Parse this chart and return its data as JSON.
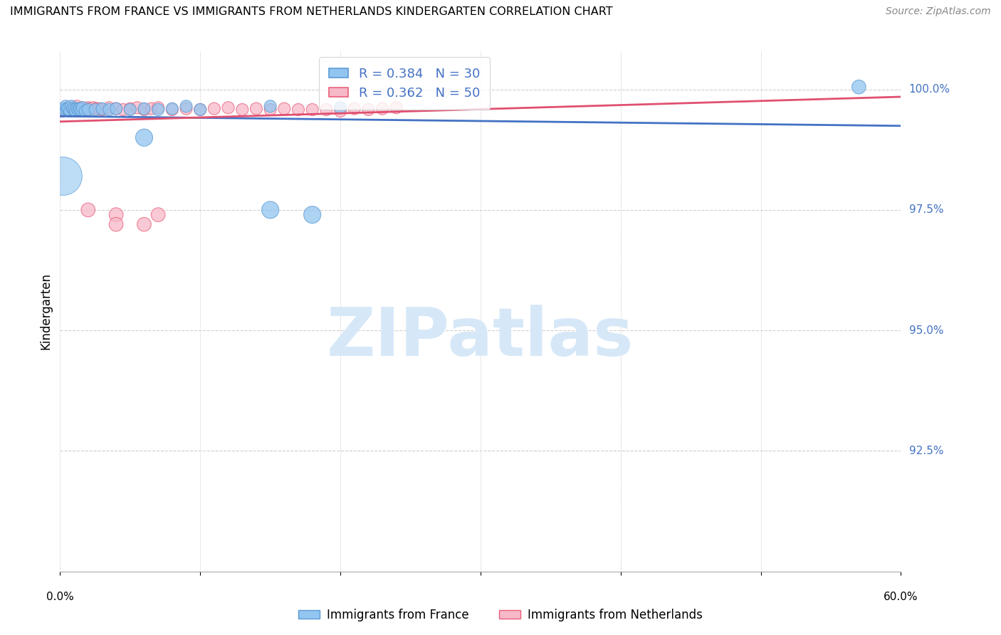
{
  "title": "IMMIGRANTS FROM FRANCE VS IMMIGRANTS FROM NETHERLANDS KINDERGARTEN CORRELATION CHART",
  "source": "Source: ZipAtlas.com",
  "ylabel": "Kindergarten",
  "x_range": [
    0.0,
    0.6
  ],
  "y_range": [
    0.9,
    1.008
  ],
  "y_ticks": [
    0.925,
    0.95,
    0.975,
    1.0
  ],
  "y_tick_labels": [
    "92.5%",
    "95.0%",
    "97.5%",
    "100.0%"
  ],
  "x_ticks": [
    0.0,
    0.1,
    0.2,
    0.3,
    0.4,
    0.5,
    0.6
  ],
  "x_tick_labels_show": [
    "0.0%",
    "60.0%"
  ],
  "legend_france": "R = 0.384   N = 30",
  "legend_netherlands": "R = 0.362   N = 50",
  "france_color": "#92c5f0",
  "netherlands_color": "#f7b8c8",
  "france_edge_color": "#5b9bd5",
  "netherlands_edge_color": "#e8607a",
  "france_line_color": "#4472c4",
  "netherlands_line_color": "#e05070",
  "watermark_text": "ZIPatlas",
  "watermark_color": "#d6e8f8",
  "france_points": [
    [
      0.002,
      0.9955
    ],
    [
      0.003,
      0.996
    ],
    [
      0.004,
      0.9965
    ],
    [
      0.005,
      0.996
    ],
    [
      0.006,
      0.996
    ],
    [
      0.007,
      0.9955
    ],
    [
      0.008,
      0.9965
    ],
    [
      0.009,
      0.996
    ],
    [
      0.01,
      0.9958
    ],
    [
      0.011,
      0.9955
    ],
    [
      0.012,
      0.996
    ],
    [
      0.013,
      0.9958
    ],
    [
      0.014,
      0.996
    ],
    [
      0.015,
      0.9958
    ],
    [
      0.016,
      0.9962
    ],
    [
      0.018,
      0.9955
    ],
    [
      0.02,
      0.9958
    ],
    [
      0.025,
      0.9958
    ],
    [
      0.03,
      0.996
    ],
    [
      0.035,
      0.9958
    ],
    [
      0.04,
      0.996
    ],
    [
      0.05,
      0.9958
    ],
    [
      0.06,
      0.996
    ],
    [
      0.07,
      0.9958
    ],
    [
      0.08,
      0.996
    ],
    [
      0.09,
      0.9965
    ],
    [
      0.1,
      0.9958
    ],
    [
      0.15,
      0.9965
    ],
    [
      0.2,
      0.9962
    ],
    [
      0.57,
      1.0005
    ]
  ],
  "france_sizes": [
    60,
    60,
    60,
    60,
    60,
    60,
    60,
    60,
    60,
    60,
    60,
    60,
    60,
    60,
    60,
    60,
    60,
    60,
    60,
    60,
    60,
    60,
    60,
    60,
    60,
    60,
    60,
    60,
    60,
    80
  ],
  "netherlands_points": [
    [
      0.001,
      0.9955
    ],
    [
      0.002,
      0.9958
    ],
    [
      0.003,
      0.996
    ],
    [
      0.004,
      0.996
    ],
    [
      0.005,
      0.9958
    ],
    [
      0.006,
      0.9962
    ],
    [
      0.007,
      0.996
    ],
    [
      0.008,
      0.9958
    ],
    [
      0.009,
      0.9962
    ],
    [
      0.01,
      0.9958
    ],
    [
      0.011,
      0.996
    ],
    [
      0.012,
      0.9965
    ],
    [
      0.013,
      0.9955
    ],
    [
      0.014,
      0.996
    ],
    [
      0.015,
      0.9958
    ],
    [
      0.016,
      0.9962
    ],
    [
      0.017,
      0.9958
    ],
    [
      0.018,
      0.996
    ],
    [
      0.019,
      0.9958
    ],
    [
      0.02,
      0.9962
    ],
    [
      0.022,
      0.996
    ],
    [
      0.024,
      0.9962
    ],
    [
      0.026,
      0.996
    ],
    [
      0.028,
      0.996
    ],
    [
      0.03,
      0.9958
    ],
    [
      0.035,
      0.9962
    ],
    [
      0.04,
      0.996
    ],
    [
      0.045,
      0.9958
    ],
    [
      0.05,
      0.996
    ],
    [
      0.055,
      0.9962
    ],
    [
      0.06,
      0.9958
    ],
    [
      0.065,
      0.996
    ],
    [
      0.07,
      0.9962
    ],
    [
      0.08,
      0.9958
    ],
    [
      0.09,
      0.996
    ],
    [
      0.1,
      0.9958
    ],
    [
      0.11,
      0.996
    ],
    [
      0.12,
      0.9962
    ],
    [
      0.13,
      0.9958
    ],
    [
      0.14,
      0.996
    ],
    [
      0.15,
      0.9958
    ],
    [
      0.16,
      0.996
    ],
    [
      0.17,
      0.9958
    ],
    [
      0.18,
      0.9958
    ],
    [
      0.19,
      0.9958
    ],
    [
      0.2,
      0.9955
    ],
    [
      0.21,
      0.996
    ],
    [
      0.22,
      0.9958
    ],
    [
      0.23,
      0.996
    ],
    [
      0.24,
      0.9962
    ]
  ],
  "netherlands_sizes": [
    60,
    60,
    60,
    60,
    60,
    60,
    60,
    60,
    60,
    60,
    60,
    60,
    60,
    60,
    60,
    60,
    60,
    60,
    60,
    60,
    60,
    60,
    60,
    60,
    60,
    60,
    60,
    60,
    60,
    60,
    60,
    60,
    60,
    60,
    60,
    60,
    60,
    60,
    60,
    60,
    60,
    60,
    60,
    60,
    60,
    60,
    60,
    60,
    60,
    60
  ],
  "large_france_point": [
    0.002,
    0.982
  ],
  "large_france_size": 600,
  "outlier_france_points": [
    [
      0.06,
      0.99
    ],
    [
      0.15,
      0.975
    ],
    [
      0.18,
      0.974
    ]
  ],
  "outlier_france_sizes": [
    120,
    120,
    120
  ],
  "outlier_nl_points": [
    [
      0.02,
      0.975
    ],
    [
      0.04,
      0.974
    ],
    [
      0.04,
      0.972
    ],
    [
      0.06,
      0.972
    ],
    [
      0.07,
      0.974
    ]
  ],
  "outlier_nl_sizes": [
    80,
    80,
    80,
    80,
    80
  ]
}
